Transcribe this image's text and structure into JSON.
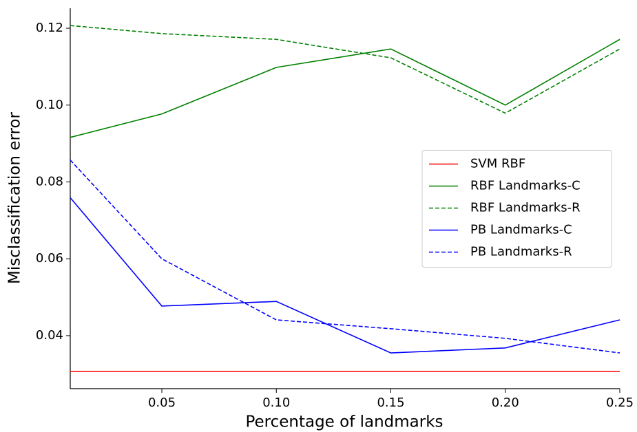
{
  "chart_data": {
    "type": "line",
    "xlabel": "Percentage of landmarks",
    "ylabel": "Misclassification error",
    "x": [
      0.01,
      0.05,
      0.1,
      0.15,
      0.2,
      0.25
    ],
    "series": [
      {
        "name": "SVM RBF",
        "color": "#ff0000",
        "linestyle": "solid",
        "values": [
          0.0307,
          0.0307,
          0.0307,
          0.0307,
          0.0307,
          0.0307
        ]
      },
      {
        "name": "RBF Landmarks-C",
        "color": "#008000",
        "linestyle": "solid",
        "values": [
          0.0916,
          0.0977,
          0.1098,
          0.1146,
          0.1,
          0.1171
        ]
      },
      {
        "name": "RBF Landmarks-R",
        "color": "#008000",
        "linestyle": "dashed",
        "values": [
          0.1207,
          0.1186,
          0.1171,
          0.1123,
          0.0979,
          0.1146
        ]
      },
      {
        "name": "PB Landmarks-C",
        "color": "#0000ff",
        "linestyle": "solid",
        "values": [
          0.0759,
          0.0477,
          0.0489,
          0.0355,
          0.0368,
          0.0441
        ]
      },
      {
        "name": "PB Landmarks-R",
        "color": "#0000ff",
        "linestyle": "dashed",
        "values": [
          0.0857,
          0.06,
          0.0441,
          0.0418,
          0.0393,
          0.0355
        ]
      }
    ],
    "xlim": [
      0.01,
      0.25
    ],
    "xticks": [
      0.05,
      {
        "value": 0.1,
        "label": "0.10"
      },
      0.15,
      {
        "value": 0.2,
        "label": "0.20"
      },
      0.25
    ],
    "ylim": [
      0.0262,
      0.1252
    ],
    "yticks": [
      0.04,
      0.06,
      0.08,
      {
        "value": 0.1,
        "label": "0.10"
      },
      0.12
    ],
    "legend": "center right"
  }
}
